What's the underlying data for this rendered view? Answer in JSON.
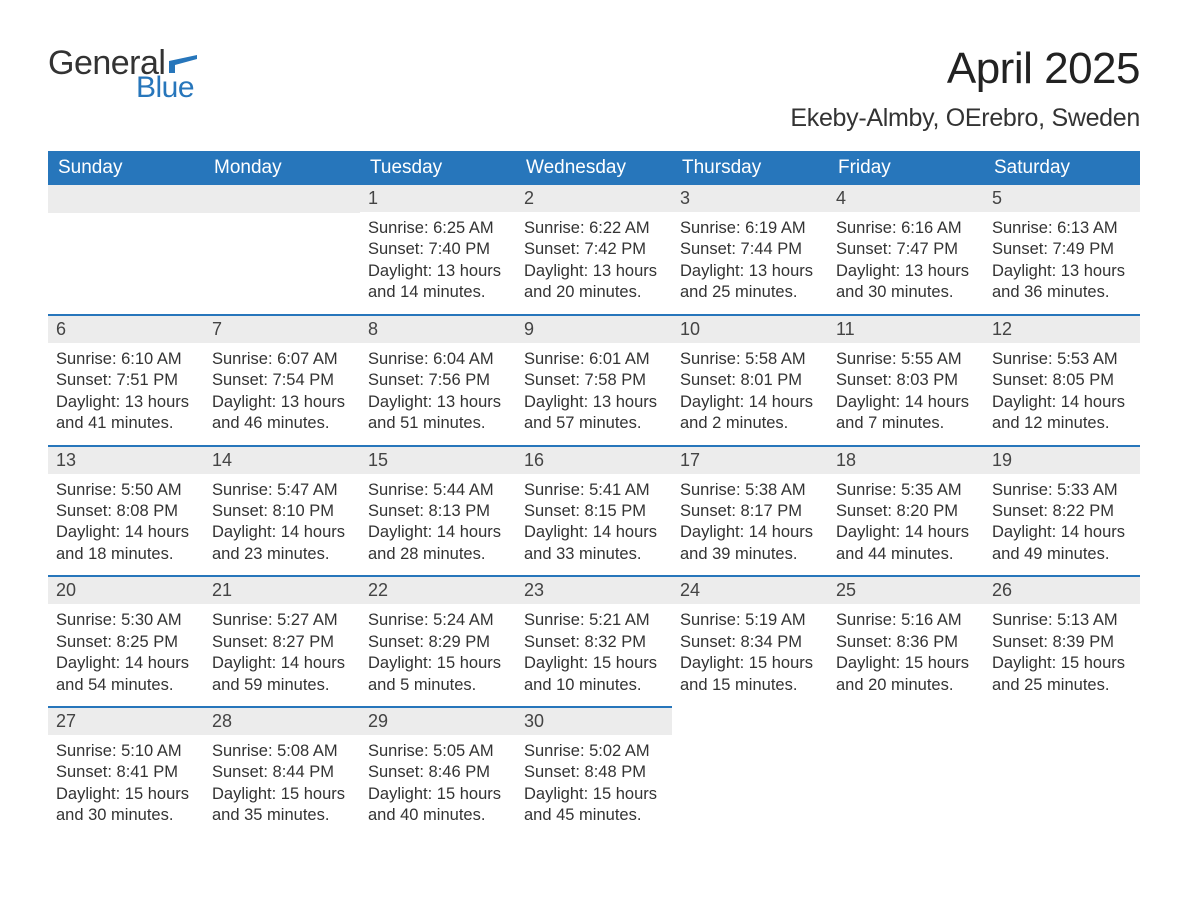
{
  "logo": {
    "general": "General",
    "blue": "Blue",
    "flag_color": "#2776bb"
  },
  "header": {
    "month_title": "April 2025",
    "location": "Ekeby-Almby, OErebro, Sweden"
  },
  "colors": {
    "header_bg": "#2776bb",
    "header_text": "#ffffff",
    "strip_bg": "#ececec",
    "strip_border": "#2776bb",
    "body_text": "#333333"
  },
  "weekdays": [
    "Sunday",
    "Monday",
    "Tuesday",
    "Wednesday",
    "Thursday",
    "Friday",
    "Saturday"
  ],
  "weeks": [
    [
      null,
      null,
      {
        "n": "1",
        "sunrise": "Sunrise: 6:25 AM",
        "sunset": "Sunset: 7:40 PM",
        "daylight": "Daylight: 13 hours and 14 minutes."
      },
      {
        "n": "2",
        "sunrise": "Sunrise: 6:22 AM",
        "sunset": "Sunset: 7:42 PM",
        "daylight": "Daylight: 13 hours and 20 minutes."
      },
      {
        "n": "3",
        "sunrise": "Sunrise: 6:19 AM",
        "sunset": "Sunset: 7:44 PM",
        "daylight": "Daylight: 13 hours and 25 minutes."
      },
      {
        "n": "4",
        "sunrise": "Sunrise: 6:16 AM",
        "sunset": "Sunset: 7:47 PM",
        "daylight": "Daylight: 13 hours and 30 minutes."
      },
      {
        "n": "5",
        "sunrise": "Sunrise: 6:13 AM",
        "sunset": "Sunset: 7:49 PM",
        "daylight": "Daylight: 13 hours and 36 minutes."
      }
    ],
    [
      {
        "n": "6",
        "sunrise": "Sunrise: 6:10 AM",
        "sunset": "Sunset: 7:51 PM",
        "daylight": "Daylight: 13 hours and 41 minutes."
      },
      {
        "n": "7",
        "sunrise": "Sunrise: 6:07 AM",
        "sunset": "Sunset: 7:54 PM",
        "daylight": "Daylight: 13 hours and 46 minutes."
      },
      {
        "n": "8",
        "sunrise": "Sunrise: 6:04 AM",
        "sunset": "Sunset: 7:56 PM",
        "daylight": "Daylight: 13 hours and 51 minutes."
      },
      {
        "n": "9",
        "sunrise": "Sunrise: 6:01 AM",
        "sunset": "Sunset: 7:58 PM",
        "daylight": "Daylight: 13 hours and 57 minutes."
      },
      {
        "n": "10",
        "sunrise": "Sunrise: 5:58 AM",
        "sunset": "Sunset: 8:01 PM",
        "daylight": "Daylight: 14 hours and 2 minutes."
      },
      {
        "n": "11",
        "sunrise": "Sunrise: 5:55 AM",
        "sunset": "Sunset: 8:03 PM",
        "daylight": "Daylight: 14 hours and 7 minutes."
      },
      {
        "n": "12",
        "sunrise": "Sunrise: 5:53 AM",
        "sunset": "Sunset: 8:05 PM",
        "daylight": "Daylight: 14 hours and 12 minutes."
      }
    ],
    [
      {
        "n": "13",
        "sunrise": "Sunrise: 5:50 AM",
        "sunset": "Sunset: 8:08 PM",
        "daylight": "Daylight: 14 hours and 18 minutes."
      },
      {
        "n": "14",
        "sunrise": "Sunrise: 5:47 AM",
        "sunset": "Sunset: 8:10 PM",
        "daylight": "Daylight: 14 hours and 23 minutes."
      },
      {
        "n": "15",
        "sunrise": "Sunrise: 5:44 AM",
        "sunset": "Sunset: 8:13 PM",
        "daylight": "Daylight: 14 hours and 28 minutes."
      },
      {
        "n": "16",
        "sunrise": "Sunrise: 5:41 AM",
        "sunset": "Sunset: 8:15 PM",
        "daylight": "Daylight: 14 hours and 33 minutes."
      },
      {
        "n": "17",
        "sunrise": "Sunrise: 5:38 AM",
        "sunset": "Sunset: 8:17 PM",
        "daylight": "Daylight: 14 hours and 39 minutes."
      },
      {
        "n": "18",
        "sunrise": "Sunrise: 5:35 AM",
        "sunset": "Sunset: 8:20 PM",
        "daylight": "Daylight: 14 hours and 44 minutes."
      },
      {
        "n": "19",
        "sunrise": "Sunrise: 5:33 AM",
        "sunset": "Sunset: 8:22 PM",
        "daylight": "Daylight: 14 hours and 49 minutes."
      }
    ],
    [
      {
        "n": "20",
        "sunrise": "Sunrise: 5:30 AM",
        "sunset": "Sunset: 8:25 PM",
        "daylight": "Daylight: 14 hours and 54 minutes."
      },
      {
        "n": "21",
        "sunrise": "Sunrise: 5:27 AM",
        "sunset": "Sunset: 8:27 PM",
        "daylight": "Daylight: 14 hours and 59 minutes."
      },
      {
        "n": "22",
        "sunrise": "Sunrise: 5:24 AM",
        "sunset": "Sunset: 8:29 PM",
        "daylight": "Daylight: 15 hours and 5 minutes."
      },
      {
        "n": "23",
        "sunrise": "Sunrise: 5:21 AM",
        "sunset": "Sunset: 8:32 PM",
        "daylight": "Daylight: 15 hours and 10 minutes."
      },
      {
        "n": "24",
        "sunrise": "Sunrise: 5:19 AM",
        "sunset": "Sunset: 8:34 PM",
        "daylight": "Daylight: 15 hours and 15 minutes."
      },
      {
        "n": "25",
        "sunrise": "Sunrise: 5:16 AM",
        "sunset": "Sunset: 8:36 PM",
        "daylight": "Daylight: 15 hours and 20 minutes."
      },
      {
        "n": "26",
        "sunrise": "Sunrise: 5:13 AM",
        "sunset": "Sunset: 8:39 PM",
        "daylight": "Daylight: 15 hours and 25 minutes."
      }
    ],
    [
      {
        "n": "27",
        "sunrise": "Sunrise: 5:10 AM",
        "sunset": "Sunset: 8:41 PM",
        "daylight": "Daylight: 15 hours and 30 minutes."
      },
      {
        "n": "28",
        "sunrise": "Sunrise: 5:08 AM",
        "sunset": "Sunset: 8:44 PM",
        "daylight": "Daylight: 15 hours and 35 minutes."
      },
      {
        "n": "29",
        "sunrise": "Sunrise: 5:05 AM",
        "sunset": "Sunset: 8:46 PM",
        "daylight": "Daylight: 15 hours and 40 minutes."
      },
      {
        "n": "30",
        "sunrise": "Sunrise: 5:02 AM",
        "sunset": "Sunset: 8:48 PM",
        "daylight": "Daylight: 15 hours and 45 minutes."
      },
      null,
      null,
      null
    ]
  ]
}
